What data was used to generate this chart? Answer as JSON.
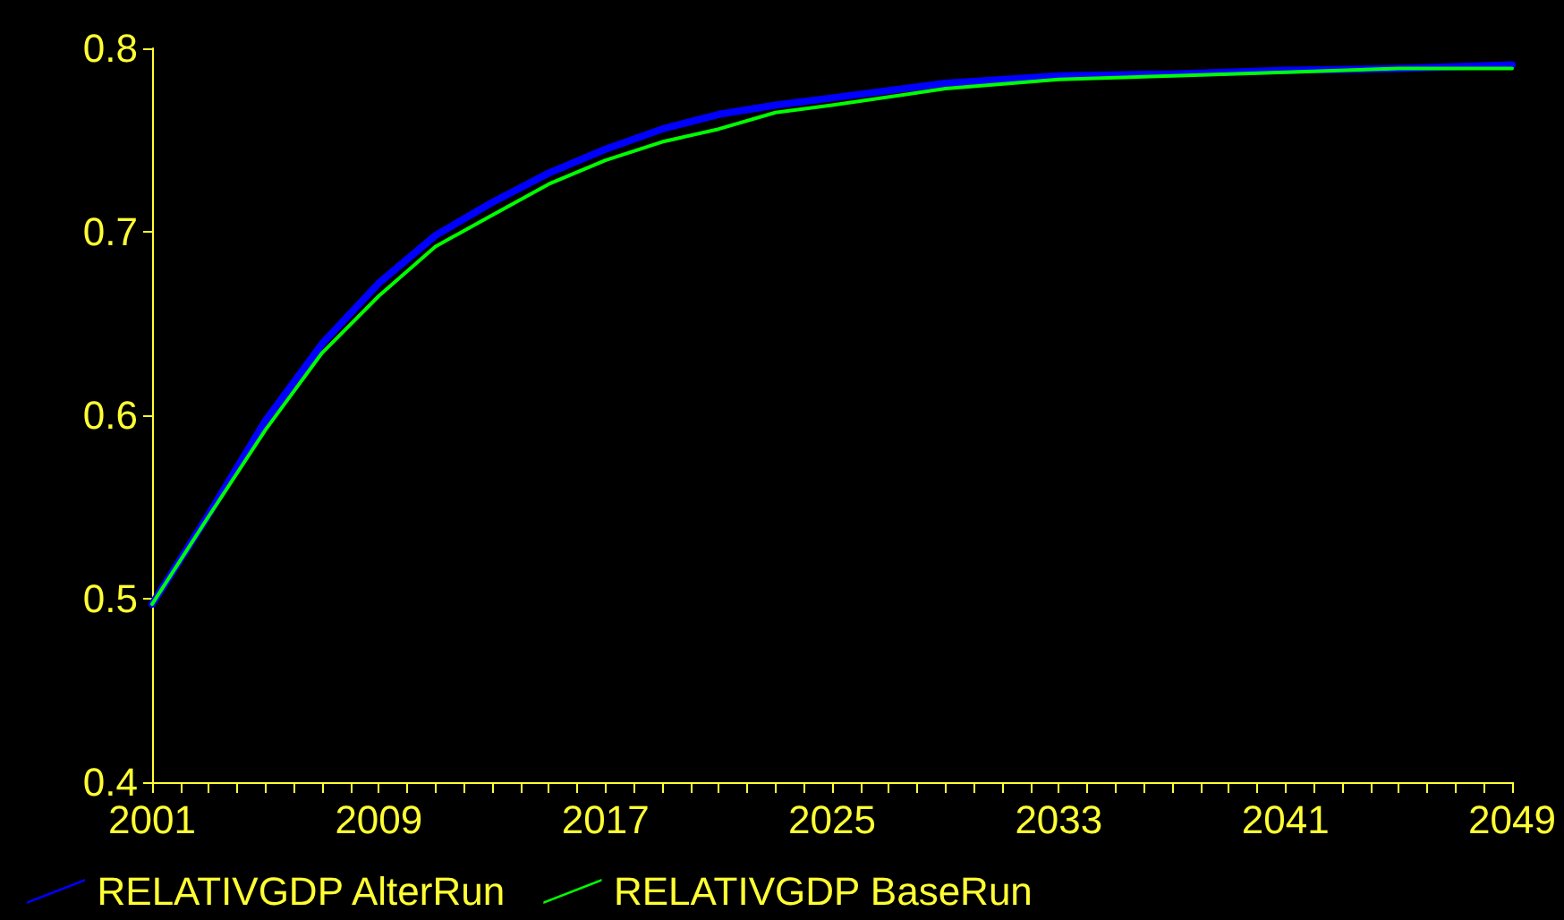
{
  "chart_data": {
    "type": "line",
    "x": [
      2001,
      2003,
      2005,
      2007,
      2009,
      2011,
      2013,
      2015,
      2017,
      2019,
      2021,
      2023,
      2025,
      2029,
      2033,
      2037,
      2041,
      2045,
      2049
    ],
    "series": [
      {
        "name": "RELATIVGDP AlterRun",
        "color": "#0000ff",
        "values": [
          0.497,
          0.546,
          0.597,
          0.639,
          0.672,
          0.698,
          0.716,
          0.732,
          0.745,
          0.756,
          0.764,
          0.769,
          0.773,
          0.781,
          0.785,
          0.786,
          0.788,
          0.789,
          0.791
        ]
      },
      {
        "name": "RELATIVGDP BaseRun",
        "color": "#00ff00",
        "values": [
          0.497,
          0.545,
          0.592,
          0.634,
          0.665,
          0.692,
          0.709,
          0.726,
          0.739,
          0.749,
          0.756,
          0.765,
          0.769,
          0.778,
          0.783,
          0.785,
          0.787,
          0.789,
          0.789
        ]
      }
    ],
    "xlim": [
      2001,
      2049
    ],
    "xticks": [
      2001,
      2009,
      2017,
      2025,
      2033,
      2041,
      2049
    ],
    "ylim": [
      0.4,
      0.8
    ],
    "yticks": [
      0.4,
      0.5,
      0.6,
      0.7,
      0.8
    ],
    "grid": false,
    "legend": "bottom left",
    "marker": "none",
    "line_style": "solid"
  }
}
